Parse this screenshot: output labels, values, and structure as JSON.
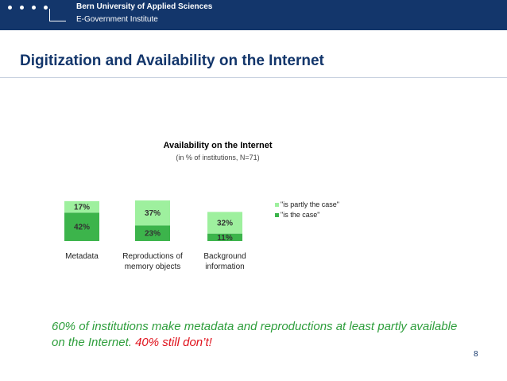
{
  "header": {
    "university": "Bern University of Applied Sciences",
    "institute": "E-Government Institute"
  },
  "slide": {
    "title": "Digitization and Availability on the Internet",
    "conclusion_main": "60% of institutions make metadata and reproductions at least partly available on the Internet.",
    "conclusion_highlight": "40% still don’t!",
    "page_number": "8"
  },
  "colors": {
    "header_bg": "#13366b",
    "case": "#3cb44b",
    "partly": "#9ef09e",
    "conclusion_text": "#2e9e3c",
    "highlight": "#e0141e"
  },
  "chart_data": {
    "type": "bar",
    "stacked": true,
    "title": "Availability on the Internet",
    "subtitle": "(in % of institutions, N=71)",
    "categories": [
      [
        "Metadata"
      ],
      [
        "Reproductions of",
        "memory objects"
      ],
      [
        "Background",
        "information"
      ]
    ],
    "series": [
      {
        "name": "\"is the case\"",
        "values": [
          42,
          23,
          11
        ],
        "value_labels": [
          "42%",
          "23%",
          "11%"
        ],
        "color": "#3cb44b"
      },
      {
        "name": "\"is partly the case\"",
        "values": [
          17,
          37,
          32
        ],
        "value_labels": [
          "17%",
          "37%",
          "32%"
        ],
        "color": "#9ef09e"
      }
    ],
    "legend_order": [
      1,
      0
    ],
    "legend_position": "right",
    "ylim": [
      0,
      60
    ],
    "yaxis_visible": false,
    "grid": false
  }
}
